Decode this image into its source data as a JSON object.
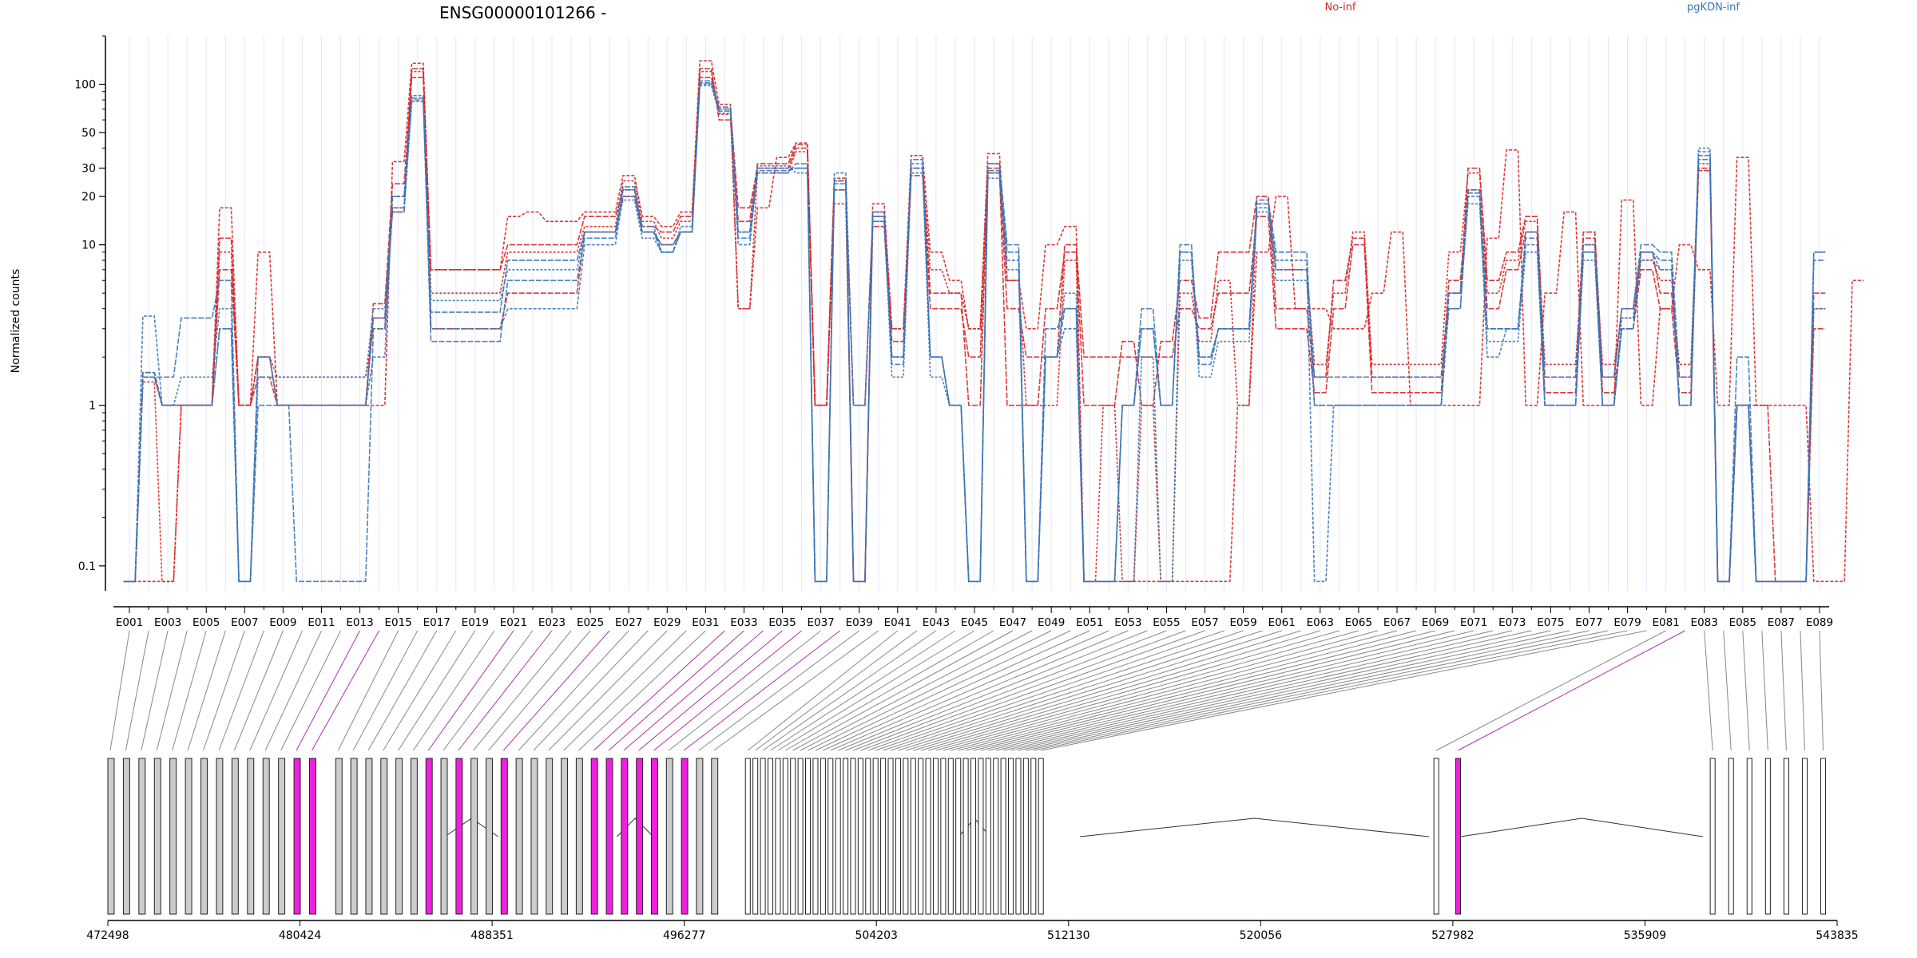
{
  "chart_data": {
    "type": "line",
    "title": "ENSG00000101266 -",
    "ylabel": "Normalized counts",
    "ylim": [
      0.07,
      200
    ],
    "y_scale": "log",
    "y_ticks": [
      0.1,
      1,
      10,
      20,
      30,
      50,
      100
    ],
    "y_tick_labels": [
      "0.1",
      "1",
      "10",
      "20",
      "30",
      "50",
      "100"
    ],
    "x_categories_count": 89,
    "x_tick_labels": [
      "E001",
      "E003",
      "E005",
      "E007",
      "E009",
      "E011",
      "E013",
      "E015",
      "E017",
      "E019",
      "E021",
      "E023",
      "E025",
      "E027",
      "E029",
      "E031",
      "E033",
      "E035",
      "E037",
      "E039",
      "E041",
      "E043",
      "E045",
      "E047",
      "E049",
      "E051",
      "E053",
      "E055",
      "E057",
      "E059",
      "E061",
      "E063",
      "E065",
      "E067",
      "E069",
      "E071",
      "E073",
      "E075",
      "E077",
      "E079",
      "E081",
      "E083",
      "E085",
      "E087",
      "E089"
    ],
    "legend": [
      {
        "name": "No-inf",
        "color": "#d62728",
        "position": "top-center"
      },
      {
        "name": "pgKDN-inf",
        "color": "#3a75b8",
        "position": "top-right"
      }
    ],
    "series": [
      {
        "name": "No-inf",
        "color": "#d62728",
        "style": "dashed",
        "values": [
          0.08,
          0.08,
          0.08,
          1,
          1,
          17,
          1,
          9,
          1,
          1,
          1,
          1,
          1,
          1,
          33,
          135,
          7,
          7,
          7,
          7,
          15,
          16,
          14,
          14,
          16,
          16,
          27,
          15,
          13,
          16,
          140,
          75,
          4,
          17,
          35,
          43,
          1,
          26,
          0.08,
          18,
          3,
          36,
          9,
          6,
          3,
          37,
          6,
          3,
          10,
          13,
          0.08,
          0.08,
          0.08,
          0.08,
          0.08,
          0.08,
          0.08,
          0.08,
          1,
          9,
          20,
          4,
          4,
          3,
          3,
          5,
          12,
          1,
          1,
          1,
          1,
          11,
          39,
          1,
          5,
          16,
          1,
          1,
          19,
          1,
          4,
          10,
          7,
          1,
          35,
          1,
          1,
          1,
          0.08,
          0.08,
          6
        ]
      },
      {
        "name": "No-inf",
        "color": "#d62728",
        "style": "dashed",
        "values": [
          0.08,
          1.6,
          1,
          1,
          1,
          11,
          1,
          2,
          1,
          1,
          1,
          1,
          1,
          4.3,
          24,
          110,
          7,
          7,
          7,
          7,
          10,
          10,
          10,
          10,
          15,
          15,
          22,
          13,
          12,
          15,
          110,
          70,
          17,
          30,
          30,
          40,
          1,
          22,
          1,
          15,
          2.5,
          30,
          5,
          5,
          1,
          30,
          1,
          1,
          4,
          9,
          1,
          1,
          2.5,
          1,
          2.5,
          6,
          3.5,
          9,
          9,
          20,
          4,
          4,
          1.5,
          6,
          11,
          1.5,
          1.5,
          1.5,
          1.5,
          5,
          30,
          6,
          9,
          15,
          1.5,
          1.5,
          12,
          1.5,
          4,
          9,
          5,
          1.5,
          30,
          0.08,
          1,
          1,
          0.08,
          0.08,
          5
        ]
      },
      {
        "name": "No-inf",
        "color": "#d62728",
        "style": "dashed",
        "values": [
          0.08,
          1.4,
          0.08,
          1,
          1,
          9,
          1,
          2,
          1.5,
          1.5,
          1.5,
          1.5,
          1.5,
          3,
          17,
          120,
          5,
          5,
          5,
          5,
          9,
          9,
          9,
          9,
          13,
          13,
          25,
          14,
          11,
          14,
          120,
          65,
          4,
          28,
          28,
          38,
          1,
          18,
          0.08,
          16,
          3,
          30,
          7,
          5,
          3,
          32,
          6,
          1,
          1,
          8,
          0.08,
          1,
          0.08,
          1,
          0.08,
          5,
          2.5,
          6,
          1,
          18,
          7,
          7,
          1.8,
          5,
          12,
          1.8,
          1.8,
          1.8,
          1.8,
          9,
          28,
          5,
          8,
          14,
          1.8,
          1.8,
          10,
          1.8,
          3.5,
          8,
          6,
          1.8,
          32,
          0.08,
          1,
          0.08,
          0.08,
          0.08,
          4
        ]
      },
      {
        "name": "No-inf",
        "color": "#d62728",
        "style": "dashed",
        "values": [
          0.08,
          1.5,
          1,
          1,
          1,
          7,
          1,
          1.5,
          1,
          1,
          1,
          1,
          1,
          3.5,
          16,
          125,
          3,
          3,
          3,
          3,
          5,
          5,
          5,
          5,
          12,
          12,
          20,
          12,
          10,
          12,
          125,
          60,
          14,
          32,
          32,
          42,
          1,
          25,
          0.08,
          13,
          2,
          27,
          4,
          4,
          2,
          28,
          4,
          2,
          2,
          10,
          2,
          2,
          2,
          2,
          2,
          4,
          3,
          5,
          5,
          15,
          3,
          3,
          1.2,
          4,
          10,
          1.2,
          1.2,
          1.2,
          1.2,
          6,
          22,
          4,
          7,
          12,
          1.2,
          1.2,
          11,
          1.2,
          3,
          7,
          4,
          1.2,
          29,
          0.08,
          1,
          0.08,
          0.08,
          0.08,
          3
        ]
      },
      {
        "name": "pgKDN-inf",
        "color": "#3a75b8",
        "style": "dashed",
        "values": [
          0.08,
          3.6,
          1,
          1,
          1,
          3,
          0.08,
          2,
          1,
          1,
          1,
          1,
          1,
          2,
          20,
          85,
          3,
          3,
          3,
          3,
          4,
          4,
          4,
          4,
          10,
          10,
          20,
          13,
          9,
          12,
          100,
          70,
          10,
          30,
          30,
          30,
          0.08,
          28,
          1,
          14,
          2,
          32,
          2,
          1,
          0.08,
          28,
          8,
          0.08,
          2,
          3,
          0.08,
          0.08,
          1,
          3,
          1,
          9,
          2,
          3,
          3,
          17,
          8,
          8,
          0.08,
          1,
          1,
          1,
          1,
          1,
          1,
          4,
          20,
          2,
          3,
          10,
          1,
          1,
          9,
          1,
          3,
          9,
          7,
          1,
          38,
          0.08,
          1,
          0.08,
          0.08,
          0.08,
          9
        ]
      },
      {
        "name": "pgKDN-inf",
        "color": "#3a75b8",
        "style": "dashed",
        "values": [
          0.08,
          1.5,
          1.5,
          3.5,
          3.5,
          6,
          0.08,
          1,
          1,
          0.08,
          0.08,
          0.08,
          0.08,
          3,
          17,
          80,
          2.5,
          2.5,
          2.5,
          2.5,
          6,
          6,
          6,
          6,
          11,
          11,
          22,
          12,
          10,
          12,
          105,
          68,
          11,
          28,
          28,
          32,
          0.08,
          25,
          0.08,
          16,
          1.8,
          34,
          2,
          1,
          0.08,
          32,
          10,
          0.08,
          3,
          4,
          0.08,
          0.08,
          1,
          4,
          1,
          10,
          1.8,
          3,
          3,
          18,
          7,
          7,
          1.5,
          1.5,
          1.5,
          1.5,
          1.5,
          1.5,
          1.5,
          4,
          22,
          3,
          3,
          12,
          1.5,
          1.5,
          10,
          1.5,
          4,
          10,
          9,
          1.5,
          36,
          0.08,
          2,
          0.08,
          0.08,
          0.08,
          8
        ]
      },
      {
        "name": "pgKDN-inf",
        "color": "#3a75b8",
        "style": "dashed",
        "values": [
          0.08,
          1.5,
          1,
          1.5,
          1.5,
          4,
          0.08,
          1.5,
          1.5,
          1.5,
          1.5,
          1.5,
          1.5,
          4,
          16,
          78,
          4.5,
          4.5,
          4.5,
          4.5,
          7,
          7,
          7,
          7,
          12,
          12,
          19,
          11,
          9,
          13,
          98,
          66,
          12,
          31,
          31,
          28,
          0.08,
          22,
          1,
          14,
          1.5,
          28,
          1.5,
          1,
          0.08,
          26,
          7,
          0.08,
          2,
          5,
          0.08,
          0.08,
          0.08,
          2,
          0.08,
          8,
          1.5,
          2.5,
          2.5,
          16,
          6,
          6,
          1,
          1,
          1,
          1,
          1,
          1,
          1,
          5,
          18,
          2.5,
          2.5,
          9,
          1,
          1,
          8,
          1,
          3.5,
          8,
          7,
          1,
          40,
          0.08,
          1,
          0.08,
          0.08,
          0.08,
          4
        ]
      },
      {
        "name": "pgKDN-inf",
        "color": "#3a75b8",
        "style": "dashed",
        "values": [
          0.08,
          1.6,
          1,
          1,
          1,
          3,
          0.08,
          2,
          1,
          1,
          1,
          1,
          1,
          3.5,
          20,
          82,
          3.8,
          3.8,
          3.8,
          3.8,
          8,
          8,
          8,
          8,
          12,
          12,
          23,
          12,
          9,
          12,
          102,
          72,
          12,
          29,
          29,
          30,
          0.08,
          24,
          0.08,
          15,
          2,
          30,
          2,
          1,
          0.08,
          29,
          9,
          0.08,
          2,
          4,
          0.08,
          0.08,
          1,
          3,
          1,
          9,
          2,
          3,
          3,
          19,
          9,
          9,
          1,
          1,
          1,
          1,
          1,
          1,
          1,
          5,
          21,
          3,
          3,
          11,
          1,
          1,
          9,
          1,
          3,
          9,
          8,
          1,
          34,
          0.08,
          1,
          0.08,
          0.08,
          0.08,
          9
        ]
      }
    ],
    "gene_model": {
      "coordinate_ticks": [
        "472498",
        "480424",
        "488351",
        "496277",
        "504203",
        "512130",
        "520056",
        "527982",
        "535909",
        "543835"
      ],
      "highlight_color": "#f020e0",
      "exon_color": "#cccccc"
    }
  }
}
